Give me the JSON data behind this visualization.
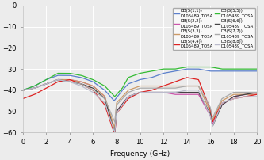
{
  "xlabel": "Frequency (GHz)",
  "xlim": [
    0,
    20
  ],
  "ylim": [
    -60,
    0
  ],
  "yticks": [
    0,
    -10,
    -20,
    -30,
    -40,
    -50,
    -60
  ],
  "xticks": [
    0,
    2,
    4,
    6,
    8,
    10,
    12,
    14,
    16,
    18,
    20
  ],
  "bg_color": "#ececec",
  "grid_color": "#ffffff",
  "legend_entries": [
    {
      "label": "DB(S(1,1))\nD105489_TOSA",
      "color": "#5b7fcc",
      "lw": 0.9
    },
    {
      "label": "DB(S(2,2))\nD105489_TOSA",
      "color": "#cc55aa",
      "lw": 0.9
    },
    {
      "label": "DB(S(3,3))\nD105489_TOSA",
      "color": "#cc9966",
      "lw": 0.9
    },
    {
      "label": "DB(S(4,4))\nD105489_TOSA",
      "color": "#dd2222",
      "lw": 0.9
    },
    {
      "label": "DB(S(5,5))\nD105489_TOSA",
      "color": "#33bb33",
      "lw": 0.9
    },
    {
      "label": "DB(S(6,6))\nD105489_TOSA",
      "color": "#444444",
      "lw": 0.9
    },
    {
      "label": "DB(S(7,7))\nD105489_TOSA",
      "color": "#aaaaaa",
      "lw": 0.9
    },
    {
      "label": "DB(S(8,8))\nD105489_TOSA",
      "color": "#bbbbcc",
      "lw": 0.9
    }
  ],
  "curves": [
    {
      "color": "#5b7fcc",
      "lw": 0.9,
      "px": [
        0,
        0.5,
        1,
        2,
        3,
        4,
        5,
        6,
        7,
        7.8,
        8.5,
        9,
        10,
        11,
        12,
        13,
        14,
        15,
        16,
        17,
        18,
        19,
        20
      ],
      "py": [
        -40,
        -39,
        -38,
        -35,
        -33,
        -33,
        -34,
        -36,
        -40,
        -45,
        -40,
        -37,
        -35,
        -34,
        -32,
        -31,
        -30,
        -30,
        -31,
        -31,
        -31,
        -31,
        -31
      ]
    },
    {
      "color": "#cc55aa",
      "lw": 0.9,
      "px": [
        0,
        1,
        2,
        3,
        4,
        5,
        6,
        7,
        7.85,
        8,
        9,
        10,
        11,
        12,
        13,
        14,
        15,
        16,
        16.2,
        17,
        18,
        19,
        20
      ],
      "py": [
        -40,
        -39,
        -37,
        -35,
        -35,
        -36,
        -38,
        -43,
        -61,
        -50,
        -43,
        -41,
        -41,
        -41,
        -42,
        -42,
        -42,
        -52,
        -56,
        -47,
        -43,
        -42,
        -42
      ]
    },
    {
      "color": "#cc9966",
      "lw": 0.9,
      "px": [
        0,
        1,
        2,
        3,
        4,
        5,
        6,
        7,
        7.85,
        8,
        9,
        10,
        11,
        12,
        13,
        14,
        15,
        16,
        16.2,
        17,
        18,
        19,
        20
      ],
      "py": [
        -40,
        -39,
        -37,
        -35,
        -35,
        -36,
        -38,
        -43,
        -58,
        -46,
        -40,
        -38,
        -38,
        -38,
        -38,
        -38,
        -38,
        -50,
        -54,
        -45,
        -42,
        -42,
        -42
      ]
    },
    {
      "color": "#dd2222",
      "lw": 0.9,
      "px": [
        0,
        1,
        2,
        3,
        4,
        5,
        6,
        7,
        7.85,
        8,
        9,
        10,
        11,
        12,
        13,
        14,
        15,
        16,
        16.2,
        17,
        18,
        19,
        20
      ],
      "py": [
        -44,
        -42,
        -39,
        -36,
        -35,
        -37,
        -40,
        -47,
        -61,
        -51,
        -44,
        -41,
        -40,
        -38,
        -36,
        -34,
        -35,
        -49,
        -55,
        -46,
        -44,
        -43,
        -42
      ]
    },
    {
      "color": "#33bb33",
      "lw": 0.9,
      "px": [
        0,
        1,
        2,
        3,
        4,
        5,
        6,
        7,
        7.85,
        8.5,
        9,
        10,
        11,
        12,
        13,
        14,
        15,
        16,
        17,
        18,
        19,
        20
      ],
      "py": [
        -40,
        -38,
        -35,
        -32,
        -32,
        -33,
        -35,
        -38,
        -43,
        -39,
        -34,
        -32,
        -31,
        -30,
        -30,
        -29,
        -29,
        -29,
        -30,
        -30,
        -30,
        -30
      ]
    },
    {
      "color": "#444444",
      "lw": 0.9,
      "px": [
        0,
        1,
        2,
        3,
        4,
        5,
        6,
        7,
        7.85,
        8,
        9,
        10,
        11,
        12,
        13,
        14,
        15,
        16,
        16.2,
        17,
        18,
        19,
        20
      ],
      "py": [
        -40,
        -39,
        -37,
        -35,
        -36,
        -37,
        -39,
        -44,
        -60,
        -50,
        -43,
        -41,
        -41,
        -41,
        -41,
        -41,
        -41,
        -51,
        -57,
        -47,
        -43,
        -42,
        -41
      ]
    },
    {
      "color": "#aaaaaa",
      "lw": 0.9,
      "px": [
        0,
        1,
        2,
        3,
        4,
        5,
        6,
        7,
        7.85,
        8,
        9,
        10,
        11,
        12,
        13,
        14,
        15,
        16,
        16.2,
        17,
        18,
        19,
        20
      ],
      "py": [
        -40,
        -39,
        -37,
        -35,
        -36,
        -37,
        -40,
        -44,
        -55,
        -47,
        -41,
        -39,
        -39,
        -39,
        -39,
        -38,
        -38,
        -48,
        -53,
        -44,
        -41,
        -41,
        -41
      ]
    },
    {
      "color": "#bbbbcc",
      "lw": 0.9,
      "px": [
        0,
        1,
        2,
        3,
        4,
        5,
        6,
        7,
        7.85,
        8,
        9,
        10,
        11,
        12,
        13,
        14,
        15,
        16,
        16.2,
        17,
        18,
        19,
        20
      ],
      "py": [
        -40,
        -39,
        -37,
        -35,
        -36,
        -38,
        -41,
        -46,
        -60,
        -51,
        -43,
        -41,
        -41,
        -41,
        -41,
        -40,
        -40,
        -52,
        -57,
        -46,
        -44,
        -43,
        -43
      ]
    }
  ]
}
